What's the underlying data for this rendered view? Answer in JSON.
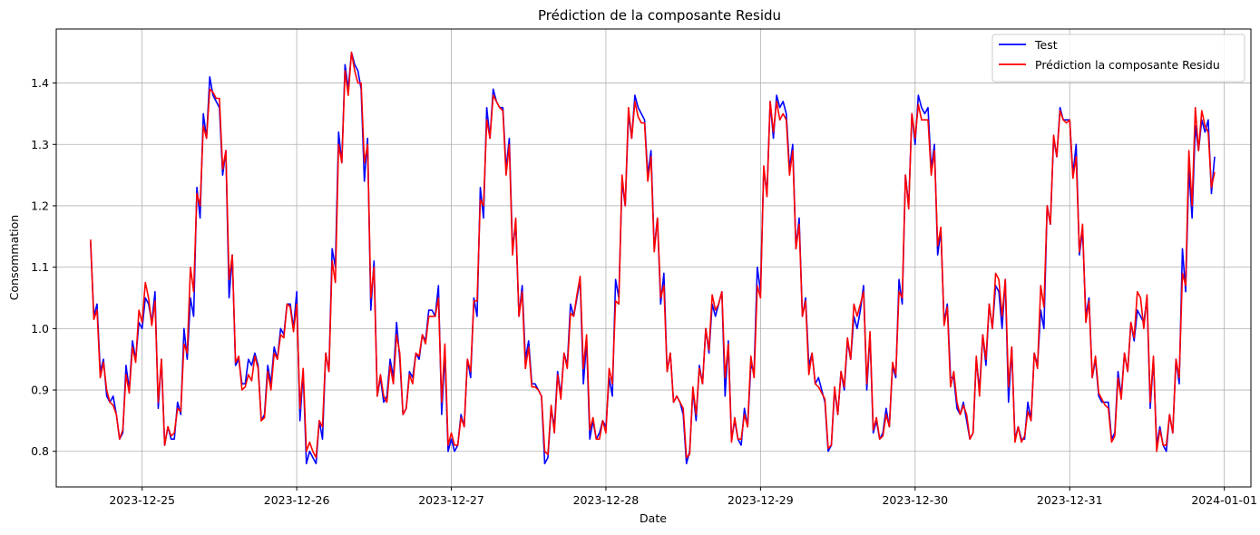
{
  "chart_data": {
    "type": "line",
    "title": "Prédiction de la composante Residu",
    "xlabel": "Date",
    "ylabel": "Consommation",
    "x_start": "2023-12-24 16:00",
    "x_step": "30min",
    "x_ticks": [
      "2023-12-25",
      "2023-12-26",
      "2023-12-27",
      "2023-12-28",
      "2023-12-29",
      "2023-12-30",
      "2023-12-31",
      "2024-01-01"
    ],
    "y_ticks": [
      0.8,
      0.9,
      1.0,
      1.1,
      1.2,
      1.3,
      1.4
    ],
    "xlim": [
      "2023-12-24 10:40",
      "2024-01-01 04:08"
    ],
    "ylim": [
      0.742,
      1.488
    ],
    "grid": true,
    "legend_position": "upper-right",
    "series": [
      {
        "name": "Test",
        "color": "#0000ff",
        "values": [
          1.14,
          1.02,
          1.04,
          0.93,
          0.95,
          0.89,
          0.88,
          0.89,
          0.86,
          0.82,
          0.83,
          0.94,
          0.9,
          0.98,
          0.95,
          1.01,
          1.0,
          1.05,
          1.04,
          1.01,
          1.06,
          0.87,
          0.95,
          0.81,
          0.84,
          0.82,
          0.82,
          0.88,
          0.86,
          1.0,
          0.95,
          1.05,
          1.02,
          1.23,
          1.18,
          1.35,
          1.31,
          1.41,
          1.38,
          1.37,
          1.36,
          1.25,
          1.29,
          1.05,
          1.12,
          0.94,
          0.95,
          0.91,
          0.91,
          0.95,
          0.94,
          0.96,
          0.94,
          0.85,
          0.86,
          0.94,
          0.91,
          0.97,
          0.95,
          1.0,
          0.99,
          1.04,
          1.04,
          1.0,
          1.06,
          0.85,
          0.93,
          0.78,
          0.8,
          0.79,
          0.78,
          0.85,
          0.82,
          0.96,
          0.93,
          1.13,
          1.1,
          1.32,
          1.27,
          1.43,
          1.39,
          1.45,
          1.43,
          1.42,
          1.39,
          1.24,
          1.31,
          1.03,
          1.11,
          0.89,
          0.92,
          0.88,
          0.89,
          0.95,
          0.92,
          1.01,
          0.95,
          0.86,
          0.87,
          0.93,
          0.92,
          0.96,
          0.95,
          0.99,
          0.98,
          1.03,
          1.03,
          1.02,
          1.07,
          0.86,
          0.96,
          0.8,
          0.82,
          0.8,
          0.81,
          0.86,
          0.84,
          0.95,
          0.92,
          1.05,
          1.02,
          1.23,
          1.18,
          1.36,
          1.31,
          1.39,
          1.37,
          1.36,
          1.36,
          1.26,
          1.31,
          1.13,
          1.17,
          1.02,
          1.07,
          0.95,
          0.98,
          0.91,
          0.91,
          0.9,
          0.89,
          0.78,
          0.79,
          0.87,
          0.84,
          0.93,
          0.89,
          0.96,
          0.94,
          1.04,
          1.02,
          1.05,
          1.08,
          0.91,
          0.98,
          0.82,
          0.85,
          0.82,
          0.83,
          0.85,
          0.84,
          0.92,
          0.89,
          1.08,
          1.05,
          1.24,
          1.2,
          1.35,
          1.31,
          1.38,
          1.36,
          1.35,
          1.34,
          1.25,
          1.29,
          1.13,
          1.18,
          1.04,
          1.09,
          0.93,
          0.96,
          0.88,
          0.89,
          0.88,
          0.86,
          0.78,
          0.8,
          0.9,
          0.85,
          0.94,
          0.91,
          1.0,
          0.96,
          1.04,
          1.02,
          1.04,
          1.06,
          0.89,
          0.98,
          0.82,
          0.85,
          0.82,
          0.81,
          0.87,
          0.84,
          0.94,
          0.93,
          1.1,
          1.06,
          1.26,
          1.22,
          1.37,
          1.31,
          1.38,
          1.36,
          1.37,
          1.35,
          1.26,
          1.3,
          1.13,
          1.18,
          1.02,
          1.05,
          0.94,
          0.96,
          0.91,
          0.92,
          0.9,
          0.88,
          0.8,
          0.81,
          0.9,
          0.86,
          0.93,
          0.9,
          0.98,
          0.95,
          1.02,
          1.0,
          1.03,
          1.07,
          0.9,
          0.99,
          0.83,
          0.85,
          0.82,
          0.83,
          0.87,
          0.84,
          0.94,
          0.92,
          1.08,
          1.04,
          1.25,
          1.2,
          1.35,
          1.3,
          1.38,
          1.36,
          1.35,
          1.36,
          1.26,
          1.3,
          1.12,
          1.16,
          1.01,
          1.04,
          0.92,
          0.92,
          0.87,
          0.86,
          0.88,
          0.85,
          0.82,
          0.83,
          0.95,
          0.9,
          0.99,
          0.94,
          1.04,
          1.0,
          1.07,
          1.06,
          1.0,
          1.08,
          0.88,
          0.97,
          0.82,
          0.84,
          0.82,
          0.82,
          0.88,
          0.85,
          0.96,
          0.94,
          1.03,
          1.0,
          1.2,
          1.17,
          1.31,
          1.28,
          1.36,
          1.34,
          1.34,
          1.34,
          1.25,
          1.3,
          1.12,
          1.16,
          1.02,
          1.05,
          0.92,
          0.95,
          0.89,
          0.88,
          0.88,
          0.88,
          0.82,
          0.83,
          0.93,
          0.89,
          0.96,
          0.93,
          1.01,
          0.98,
          1.03,
          1.02,
          1.01,
          1.05,
          0.87,
          0.95,
          0.81,
          0.84,
          0.81,
          0.8,
          0.86,
          0.83,
          0.95,
          0.91,
          1.13,
          1.06,
          1.26,
          1.18,
          1.33,
          1.29,
          1.34,
          1.32,
          1.34,
          1.22,
          1.28
        ]
      },
      {
        "name": "Prédiction la composante Residu",
        "color": "#ff0000",
        "values": [
          1.145,
          1.015,
          1.03,
          0.92,
          0.945,
          0.9,
          0.88,
          0.875,
          0.86,
          0.82,
          0.835,
          0.925,
          0.895,
          0.97,
          0.945,
          1.03,
          1.01,
          1.075,
          1.05,
          1.005,
          1.045,
          0.88,
          0.95,
          0.81,
          0.84,
          0.825,
          0.83,
          0.87,
          0.865,
          0.975,
          0.96,
          1.1,
          1.06,
          1.22,
          1.2,
          1.33,
          1.31,
          1.39,
          1.385,
          1.375,
          1.375,
          1.26,
          1.29,
          1.08,
          1.12,
          0.945,
          0.955,
          0.9,
          0.905,
          0.925,
          0.915,
          0.955,
          0.935,
          0.85,
          0.855,
          0.93,
          0.9,
          0.96,
          0.95,
          0.99,
          0.985,
          1.04,
          1.035,
          0.995,
          1.04,
          0.87,
          0.935,
          0.8,
          0.815,
          0.8,
          0.79,
          0.85,
          0.84,
          0.96,
          0.93,
          1.11,
          1.075,
          1.3,
          1.27,
          1.42,
          1.38,
          1.45,
          1.42,
          1.4,
          1.4,
          1.27,
          1.3,
          1.05,
          1.1,
          0.89,
          0.925,
          0.89,
          0.88,
          0.94,
          0.91,
          0.99,
          0.96,
          0.86,
          0.87,
          0.925,
          0.91,
          0.96,
          0.955,
          0.99,
          0.975,
          1.02,
          1.02,
          1.02,
          1.05,
          0.88,
          0.975,
          0.81,
          0.83,
          0.81,
          0.81,
          0.855,
          0.84,
          0.95,
          0.93,
          1.045,
          1.045,
          1.21,
          1.2,
          1.34,
          1.31,
          1.38,
          1.37,
          1.36,
          1.355,
          1.25,
          1.3,
          1.12,
          1.18,
          1.02,
          1.06,
          0.935,
          0.97,
          0.905,
          0.905,
          0.9,
          0.89,
          0.8,
          0.795,
          0.875,
          0.83,
          0.925,
          0.885,
          0.96,
          0.935,
          1.025,
          1.02,
          1.055,
          1.085,
          0.935,
          0.99,
          0.835,
          0.855,
          0.82,
          0.82,
          0.85,
          0.83,
          0.935,
          0.91,
          1.045,
          1.04,
          1.25,
          1.2,
          1.36,
          1.31,
          1.37,
          1.345,
          1.335,
          1.335,
          1.24,
          1.28,
          1.125,
          1.18,
          1.05,
          1.07,
          0.93,
          0.96,
          0.88,
          0.89,
          0.88,
          0.87,
          0.79,
          0.795,
          0.905,
          0.86,
          0.935,
          0.91,
          1.0,
          0.965,
          1.055,
          1.03,
          1.04,
          1.06,
          0.92,
          0.975,
          0.815,
          0.855,
          0.82,
          0.82,
          0.86,
          0.84,
          0.955,
          0.92,
          1.07,
          1.05,
          1.265,
          1.215,
          1.37,
          1.32,
          1.37,
          1.34,
          1.35,
          1.34,
          1.25,
          1.29,
          1.13,
          1.17,
          1.02,
          1.045,
          0.925,
          0.96,
          0.91,
          0.905,
          0.895,
          0.885,
          0.805,
          0.81,
          0.905,
          0.86,
          0.93,
          0.905,
          0.985,
          0.95,
          1.04,
          1.02,
          1.04,
          1.06,
          0.91,
          0.995,
          0.835,
          0.855,
          0.82,
          0.825,
          0.86,
          0.84,
          0.945,
          0.925,
          1.06,
          1.05,
          1.25,
          1.195,
          1.35,
          1.31,
          1.365,
          1.34,
          1.34,
          1.34,
          1.25,
          1.29,
          1.135,
          1.165,
          1.005,
          1.035,
          0.905,
          0.93,
          0.88,
          0.86,
          0.875,
          0.86,
          0.82,
          0.83,
          0.955,
          0.89,
          0.99,
          0.95,
          1.04,
          1.0,
          1.09,
          1.08,
          1.02,
          1.08,
          0.905,
          0.97,
          0.815,
          0.84,
          0.815,
          0.825,
          0.865,
          0.85,
          0.96,
          0.935,
          1.07,
          1.035,
          1.2,
          1.17,
          1.315,
          1.28,
          1.355,
          1.34,
          1.335,
          1.34,
          1.245,
          1.28,
          1.125,
          1.17,
          1.01,
          1.045,
          0.92,
          0.955,
          0.895,
          0.885,
          0.875,
          0.87,
          0.815,
          0.825,
          0.92,
          0.885,
          0.96,
          0.93,
          1.01,
          0.985,
          1.06,
          1.05,
          1.0,
          1.055,
          0.88,
          0.955,
          0.8,
          0.835,
          0.81,
          0.81,
          0.86,
          0.83,
          0.95,
          0.92,
          1.09,
          1.07,
          1.29,
          1.2,
          1.36,
          1.29,
          1.355,
          1.33,
          1.32,
          1.23,
          1.255
        ]
      }
    ]
  }
}
